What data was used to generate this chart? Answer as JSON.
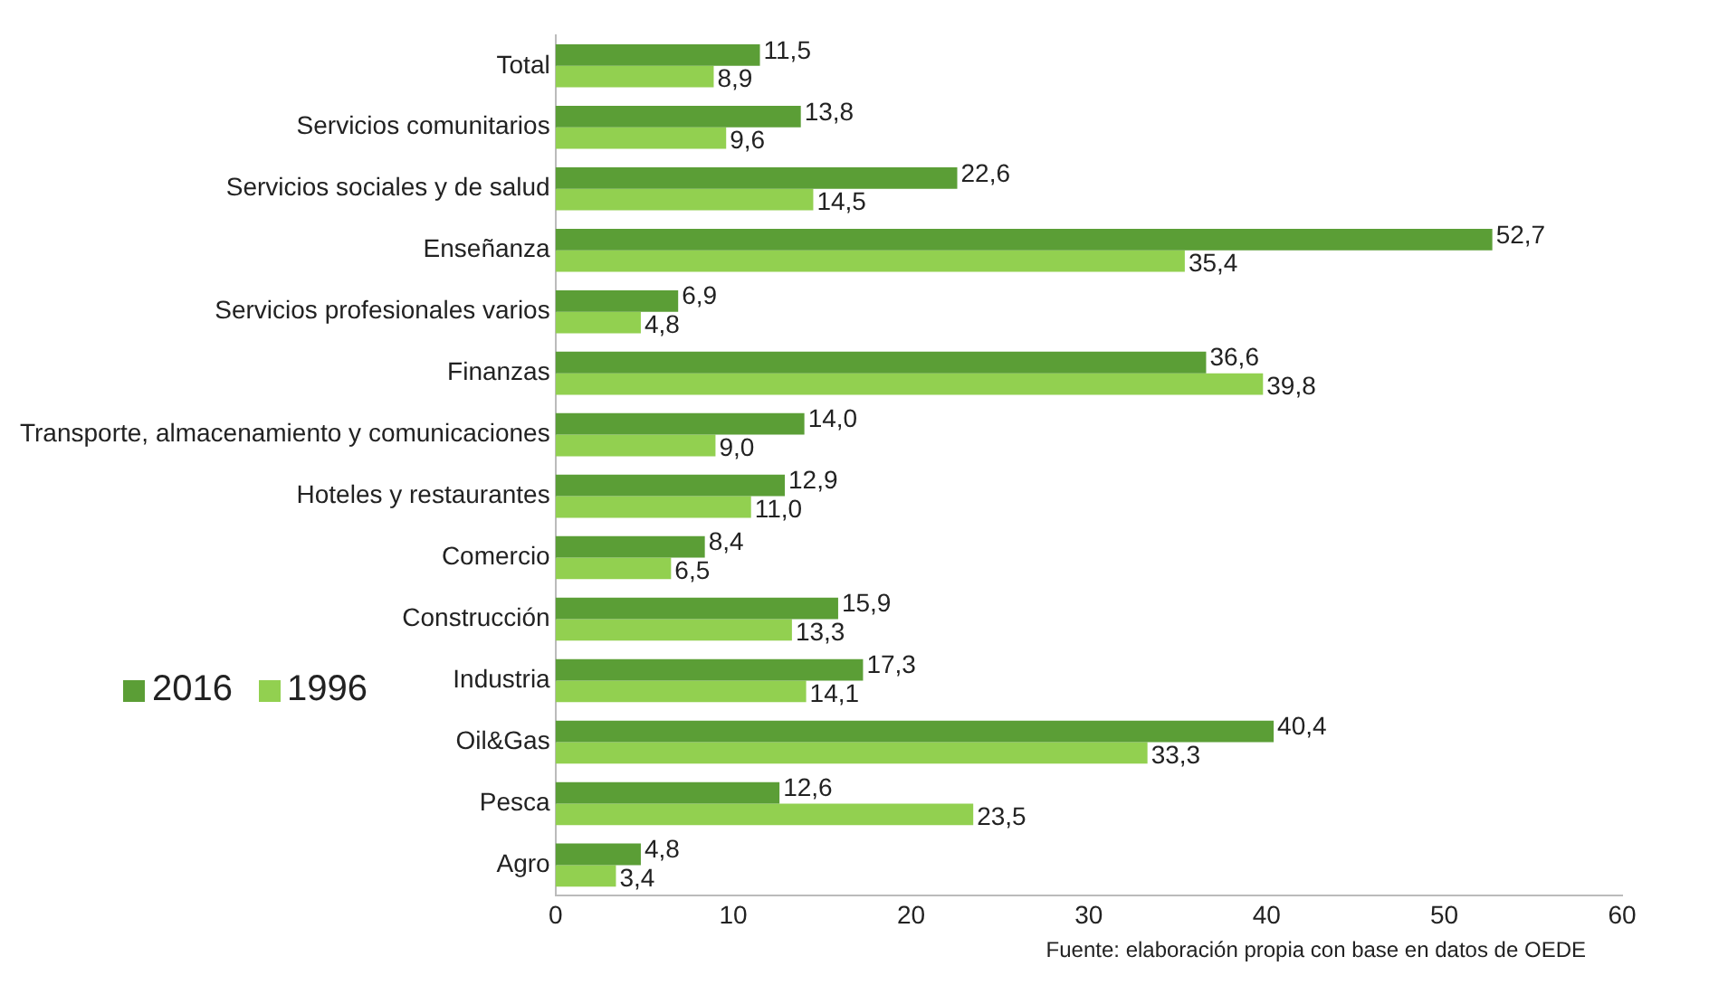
{
  "chart_data": {
    "type": "bar",
    "orientation": "horizontal",
    "categories": [
      "Total",
      "Servicios comunitarios",
      "Servicios sociales y de salud",
      "Enseñanza",
      "Servicios profesionales varios",
      "Finanzas",
      "Transporte, almacenamiento y comunicaciones",
      "Hoteles y restaurantes",
      "Comercio",
      "Construcción",
      "Industria",
      "Oil&Gas",
      "Pesca",
      "Agro"
    ],
    "series": [
      {
        "name": "2016",
        "color": "#5b9e36",
        "values": [
          11.5,
          13.8,
          22.6,
          52.7,
          6.9,
          36.6,
          14.0,
          12.9,
          8.4,
          15.9,
          17.3,
          40.4,
          12.6,
          4.8
        ],
        "value_labels": [
          "11,5",
          "13,8",
          "22,6",
          "52,7",
          "6,9",
          "36,6",
          "14,0",
          "12,9",
          "8,4",
          "15,9",
          "17,3",
          "40,4",
          "12,6",
          "4,8"
        ]
      },
      {
        "name": "1996",
        "color": "#92d050",
        "values": [
          8.9,
          9.6,
          14.5,
          35.4,
          4.8,
          39.8,
          9.0,
          11.0,
          6.5,
          13.3,
          14.1,
          33.3,
          23.5,
          3.4
        ],
        "value_labels": [
          "8,9",
          "9,6",
          "14,5",
          "35,4",
          "4,8",
          "39,8",
          "9,0",
          "11,0",
          "6,5",
          "13,3",
          "14,1",
          "33,3",
          "23,5",
          "3,4"
        ]
      }
    ],
    "xlim": [
      0,
      60
    ],
    "xticks": [
      0,
      10,
      20,
      30,
      40,
      50,
      60
    ],
    "grid": false,
    "legend": "left",
    "annotations": [
      "Fuente: elaboración propia con base en datos de OEDE"
    ]
  }
}
